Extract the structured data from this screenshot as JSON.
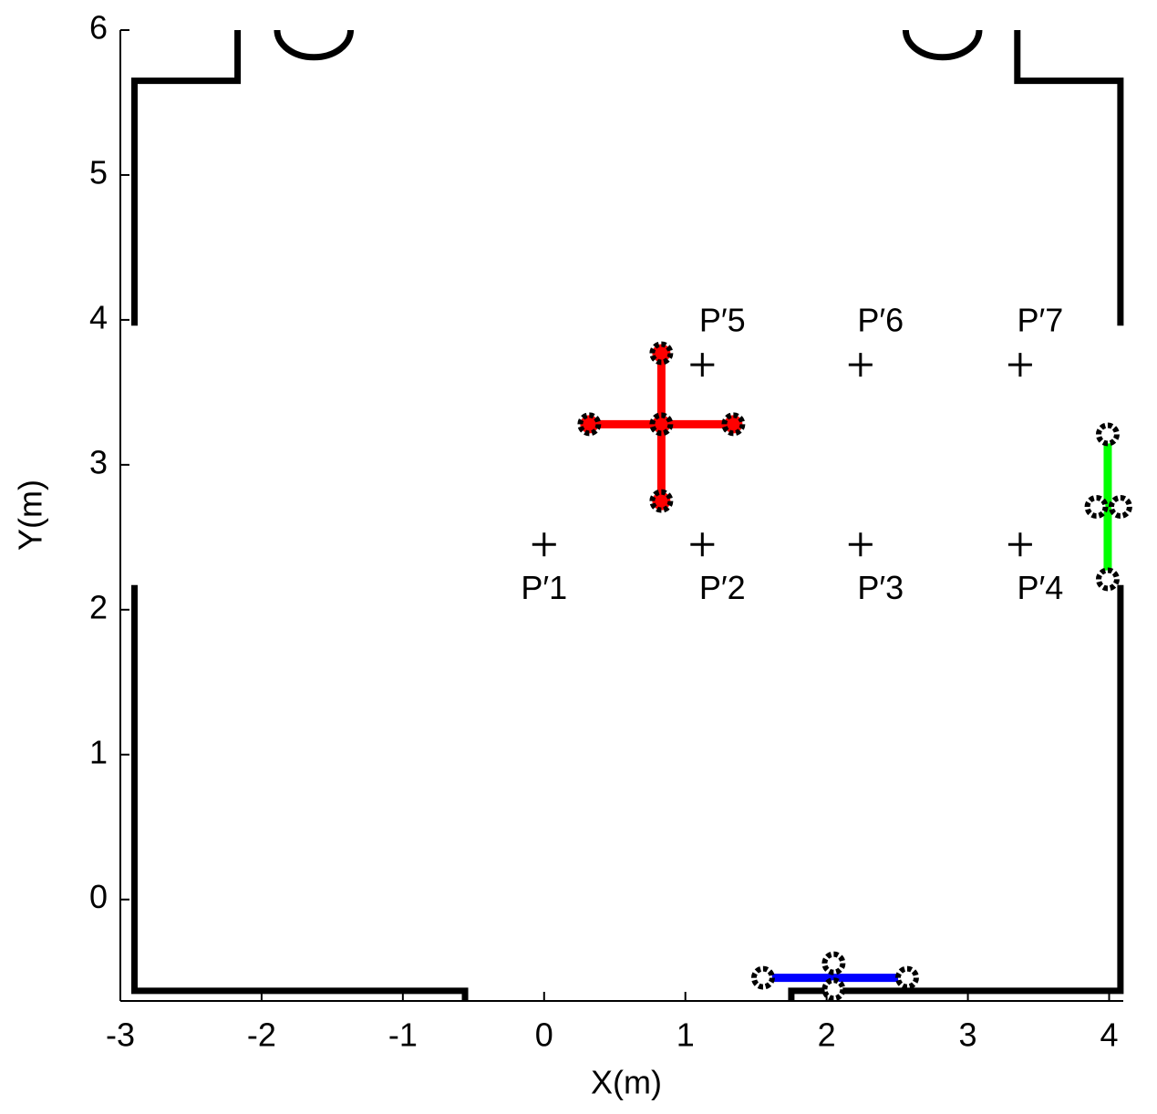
{
  "chart_data": {
    "type": "floorplan",
    "xlabel": "X(m)",
    "ylabel": "Y(m)",
    "xlim": [
      -3,
      4.1
    ],
    "ylim": [
      -0.7,
      6
    ],
    "xticks": [
      -3,
      -2,
      -1,
      0,
      1,
      2,
      3,
      4
    ],
    "yticks": [
      0,
      1,
      2,
      3,
      4,
      5,
      6
    ],
    "wall_color": "#000000",
    "walls": [
      {
        "x": [
          -2.9,
          -2.9,
          -2.17,
          -2.17
        ],
        "y": [
          3.96,
          5.65,
          5.65,
          6
        ]
      },
      {
        "x": [
          -2.9,
          -2.9,
          -0.56,
          -0.56
        ],
        "y": [
          2.17,
          -0.63,
          -0.63,
          -0.7
        ]
      },
      {
        "x": [
          1.75,
          1.75,
          4.08,
          4.08
        ],
        "y": [
          -0.7,
          -0.63,
          -0.63,
          2.17
        ]
      },
      {
        "x": [
          4.08,
          4.08,
          3.35,
          3.35
        ],
        "y": [
          3.96,
          5.65,
          5.65,
          6
        ]
      }
    ],
    "doors": [
      {
        "cx": -1.63,
        "cy": 6,
        "r": 0.26
      },
      {
        "cx": 2.82,
        "cy": 6,
        "r": 0.26
      }
    ],
    "points": {
      "labels": [
        "P′1",
        "P′2",
        "P′3",
        "P′4",
        "P′5",
        "P′6",
        "P′7"
      ],
      "x": [
        0,
        1.12,
        2.24,
        3.37,
        1.12,
        2.24,
        3.37
      ],
      "y": [
        2.45,
        2.45,
        2.45,
        2.45,
        3.69,
        3.69,
        3.69
      ]
    },
    "arrays": [
      {
        "color": "#ff0000",
        "marker_center": "#ff0000",
        "segments": [
          {
            "x": [
              0.32,
              1.34
            ],
            "y": [
              3.28,
              3.28
            ]
          },
          {
            "x": [
              0.83,
              0.83
            ],
            "y": [
              3.77,
              2.75
            ]
          }
        ],
        "markers": {
          "x": [
            0.32,
            0.83,
            1.34,
            0.83,
            0.83
          ],
          "y": [
            3.28,
            3.28,
            3.28,
            3.77,
            2.75
          ]
        }
      },
      {
        "color": "#00ff00",
        "marker_center": "#ffffff",
        "segments": [
          {
            "x": [
              3.99,
              3.99
            ],
            "y": [
              3.21,
              2.21
            ]
          }
        ],
        "markers": {
          "x": [
            3.99,
            3.91,
            4.08,
            3.99
          ],
          "y": [
            3.21,
            2.71,
            2.71,
            2.21
          ]
        }
      },
      {
        "color": "#0000ff",
        "marker_center": "#ffffff",
        "segments": [
          {
            "x": [
              1.55,
              2.57
            ],
            "y": [
              -0.54,
              -0.54
            ]
          }
        ],
        "markers": {
          "x": [
            1.55,
            2.57,
            2.05,
            2.05
          ],
          "y": [
            -0.54,
            -0.54,
            -0.44,
            -0.62
          ]
        }
      }
    ]
  }
}
